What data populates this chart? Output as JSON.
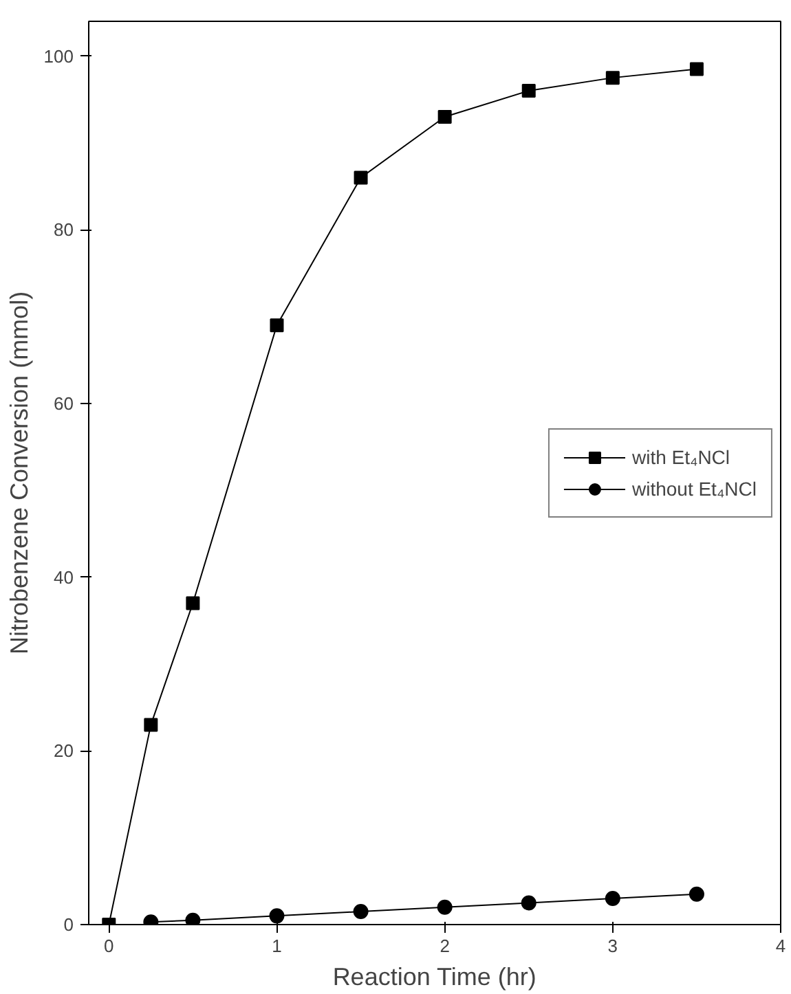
{
  "chart_data": {
    "type": "line",
    "xlabel": "Reaction Time (hr)",
    "ylabel": "Nitrobenzene Conversion (mmol)",
    "xlim": [
      -0.12,
      4
    ],
    "ylim": [
      0,
      104
    ],
    "xticks": [
      0,
      1,
      2,
      3,
      4
    ],
    "yticks": [
      0,
      20,
      40,
      60,
      80,
      100
    ],
    "grid": false,
    "legend": "right",
    "line_style": "solid",
    "series": [
      {
        "name": "with Et₄NCl",
        "color": "#000000",
        "marker": "square",
        "x": [
          0,
          0.25,
          0.5,
          1,
          1.5,
          2,
          2.5,
          3,
          3.5
        ],
        "values": [
          0,
          23,
          37,
          69,
          86,
          93,
          96,
          97.5,
          98.5
        ]
      },
      {
        "name": "without Et₄NCl",
        "color": "#000000",
        "marker": "circle",
        "x": [
          0.25,
          0.5,
          1,
          1.5,
          2,
          2.5,
          3,
          3.5
        ],
        "values": [
          0.3,
          0.5,
          1,
          1.5,
          2,
          2.5,
          3,
          3.5
        ]
      }
    ]
  }
}
